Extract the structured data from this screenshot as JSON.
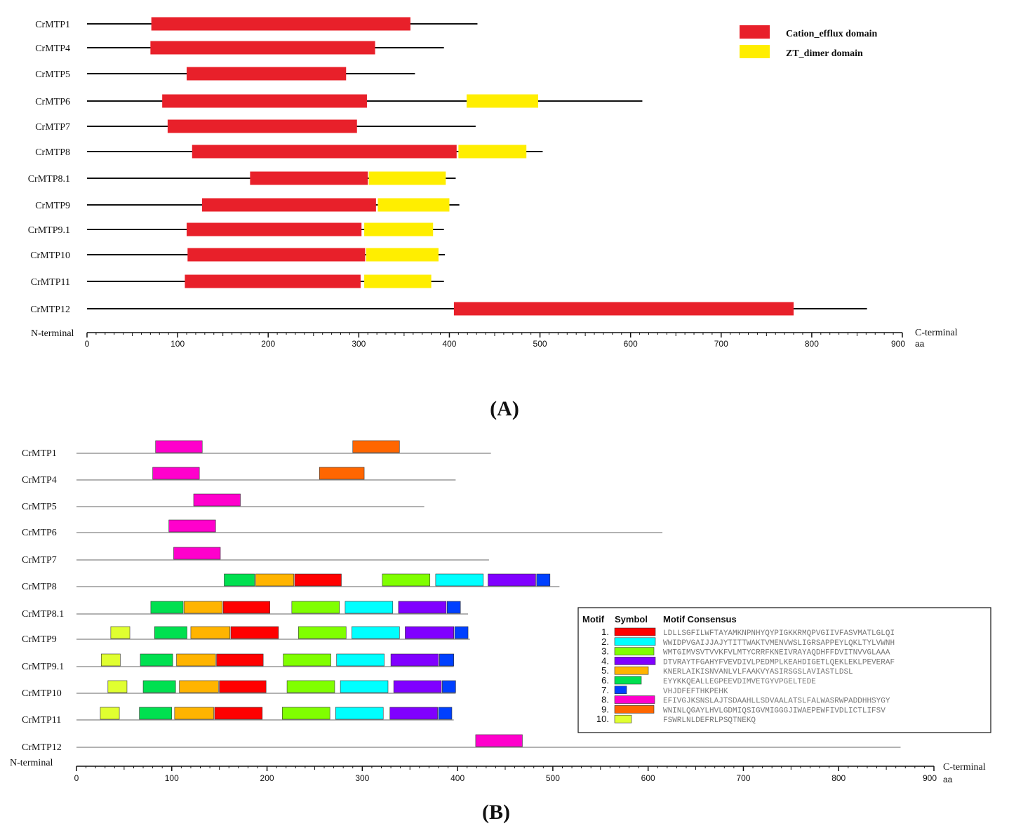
{
  "panelA": {
    "label": "A",
    "n_terminal": "N-terminal",
    "c_terminal": "C-terminal",
    "axis_unit": "aa",
    "ticks": [
      "0",
      "100",
      "200",
      "300",
      "400",
      "500",
      "600",
      "700",
      "800",
      "900"
    ],
    "legend": [
      {
        "name": "Cation_efflux domain",
        "color": "#e8202a"
      },
      {
        "name": "ZT_dimer domain",
        "color": "#ffee00"
      }
    ],
    "proteins": [
      {
        "name": "CrMTP1",
        "length": 431,
        "domains": [
          {
            "type": "Cation_efflux",
            "start": 71,
            "end": 357
          }
        ]
      },
      {
        "name": "CrMTP4",
        "length": 394,
        "domains": [
          {
            "type": "Cation_efflux",
            "start": 70,
            "end": 318
          }
        ]
      },
      {
        "name": "CrMTP5",
        "length": 362,
        "domains": [
          {
            "type": "Cation_efflux",
            "start": 110,
            "end": 286
          }
        ]
      },
      {
        "name": "CrMTP6",
        "length": 613,
        "domains": [
          {
            "type": "Cation_efflux",
            "start": 83,
            "end": 309
          },
          {
            "type": "ZT_dimer",
            "start": 419,
            "end": 498
          }
        ]
      },
      {
        "name": "CrMTP7",
        "length": 429,
        "domains": [
          {
            "type": "Cation_efflux",
            "start": 89,
            "end": 298
          }
        ]
      },
      {
        "name": "CrMTP8",
        "length": 503,
        "domains": [
          {
            "type": "Cation_efflux",
            "start": 116,
            "end": 408
          },
          {
            "type": "ZT_dimer",
            "start": 410,
            "end": 485
          }
        ]
      },
      {
        "name": "CrMTP8.1",
        "length": 407,
        "domains": [
          {
            "type": "Cation_efflux",
            "start": 180,
            "end": 310
          },
          {
            "type": "ZT_dimer",
            "start": 311,
            "end": 396
          }
        ]
      },
      {
        "name": "CrMTP9",
        "length": 411,
        "domains": [
          {
            "type": "Cation_efflux",
            "start": 127,
            "end": 319
          },
          {
            "type": "ZT_dimer",
            "start": 321,
            "end": 400
          }
        ]
      },
      {
        "name": "CrMTP9.1",
        "length": 394,
        "domains": [
          {
            "type": "Cation_efflux",
            "start": 110,
            "end": 303
          },
          {
            "type": "ZT_dimer",
            "start": 306,
            "end": 382
          }
        ]
      },
      {
        "name": "CrMTP10",
        "length": 395,
        "domains": [
          {
            "type": "Cation_efflux",
            "start": 111,
            "end": 307
          },
          {
            "type": "ZT_dimer",
            "start": 308,
            "end": 388
          }
        ]
      },
      {
        "name": "CrMTP11",
        "length": 394,
        "domains": [
          {
            "type": "Cation_efflux",
            "start": 108,
            "end": 302
          },
          {
            "type": "ZT_dimer",
            "start": 306,
            "end": 380
          }
        ]
      },
      {
        "name": "CrMTP12",
        "length": 861,
        "domains": [
          {
            "type": "Cation_efflux",
            "start": 405,
            "end": 780
          }
        ]
      }
    ]
  },
  "panelB": {
    "label": "B",
    "n_terminal": "N-terminal",
    "c_terminal": "C-terminal",
    "axis_unit": "aa",
    "ticks": [
      "0",
      "100",
      "200",
      "300",
      "400",
      "500",
      "600",
      "700",
      "800",
      "900"
    ],
    "legend_headers": {
      "motif": "Motif",
      "symbol": "Symbol",
      "consensus": "Motif Consensus"
    },
    "motifs": [
      {
        "num": "1.",
        "color": "#ff0000",
        "consensus": "LDLLSGFILWFTAYAMKNPNHYQYPIGKKRMQPVGIIVFASVMATLGLQI"
      },
      {
        "num": "2.",
        "color": "#00ffff",
        "consensus": "WWIDPVGAIJJAJYTITTWAKTVMENVWSLIGRSAPPEYLQKLTYLVWNH"
      },
      {
        "num": "3.",
        "color": "#80ff00",
        "consensus": "WMTGIMVSVTVVKFVLMTYCRRFKNEIVRAYAQDHFFDVITNVVGLAAA"
      },
      {
        "num": "4.",
        "color": "#8000ff",
        "consensus": "DTVRAYTFGAHYFVEVDIVLPEDMPLKEAHDIGETLQEKLEKLPEVERAF"
      },
      {
        "num": "5.",
        "color": "#ffb400",
        "consensus": "KNERLAIKISNVANLVLFAAKVYASIRSGSLAVIASTLDSL"
      },
      {
        "num": "6.",
        "color": "#00e050",
        "consensus": "EYYKKQEALLEGPEEVDIMVETGYVPGELTEDE"
      },
      {
        "num": "7.",
        "color": "#0040ff",
        "consensus": "VHJDFEFTHKPEHK"
      },
      {
        "num": "8.",
        "color": "#ff00cc",
        "consensus": "EFIVGJKSNSLAJTSDAAHLLSDVAALATSLFALWASRWPADDHHSYGY"
      },
      {
        "num": "9.",
        "color": "#ff6600",
        "consensus": "WNINLQGAYLHVLGDMIQSIGVMIGGGJIWAEPEWFIVDLICTLIFSV"
      },
      {
        "num": "10.",
        "color": "#e0ff30",
        "consensus": "FSWRLNLDEFRLPSQTNEKQ"
      }
    ],
    "proteins": [
      {
        "name": "CrMTP1",
        "length": 435,
        "motifs": [
          {
            "m": 8,
            "start": 83,
            "end": 132
          },
          {
            "m": 9,
            "start": 290,
            "end": 339
          }
        ]
      },
      {
        "name": "CrMTP4",
        "length": 398,
        "motifs": [
          {
            "m": 8,
            "start": 80,
            "end": 129
          },
          {
            "m": 9,
            "start": 255,
            "end": 302
          }
        ]
      },
      {
        "name": "CrMTP5",
        "length": 365,
        "motifs": [
          {
            "m": 8,
            "start": 123,
            "end": 172
          }
        ]
      },
      {
        "name": "CrMTP6",
        "length": 615,
        "motifs": [
          {
            "m": 8,
            "start": 97,
            "end": 146
          }
        ]
      },
      {
        "name": "CrMTP7",
        "length": 433,
        "motifs": [
          {
            "m": 8,
            "start": 102,
            "end": 151
          }
        ]
      },
      {
        "name": "CrMTP8",
        "length": 507,
        "motifs": [
          {
            "m": 6,
            "start": 155,
            "end": 187
          },
          {
            "m": 5,
            "start": 188,
            "end": 228
          },
          {
            "m": 1,
            "start": 229,
            "end": 278
          },
          {
            "m": 3,
            "start": 321,
            "end": 371
          },
          {
            "m": 2,
            "start": 377,
            "end": 427
          },
          {
            "m": 4,
            "start": 432,
            "end": 482
          },
          {
            "m": 7,
            "start": 483,
            "end": 497
          }
        ]
      },
      {
        "name": "CrMTP8.1",
        "length": 411,
        "motifs": [
          {
            "m": 6,
            "start": 78,
            "end": 112
          },
          {
            "m": 5,
            "start": 113,
            "end": 153
          },
          {
            "m": 1,
            "start": 154,
            "end": 203
          },
          {
            "m": 3,
            "start": 226,
            "end": 276
          },
          {
            "m": 2,
            "start": 282,
            "end": 332
          },
          {
            "m": 4,
            "start": 338,
            "end": 388
          },
          {
            "m": 7,
            "start": 389,
            "end": 403
          }
        ]
      },
      {
        "name": "CrMTP9",
        "length": 413,
        "motifs": [
          {
            "m": 10,
            "start": 36,
            "end": 56
          },
          {
            "m": 6,
            "start": 82,
            "end": 116
          },
          {
            "m": 5,
            "start": 120,
            "end": 161
          },
          {
            "m": 1,
            "start": 162,
            "end": 212
          },
          {
            "m": 3,
            "start": 233,
            "end": 283
          },
          {
            "m": 2,
            "start": 289,
            "end": 339
          },
          {
            "m": 4,
            "start": 345,
            "end": 396
          },
          {
            "m": 7,
            "start": 397,
            "end": 411
          }
        ]
      },
      {
        "name": "CrMTP9.1",
        "length": 396,
        "motifs": [
          {
            "m": 10,
            "start": 26,
            "end": 46
          },
          {
            "m": 6,
            "start": 67,
            "end": 101
          },
          {
            "m": 5,
            "start": 105,
            "end": 146
          },
          {
            "m": 1,
            "start": 147,
            "end": 196
          },
          {
            "m": 3,
            "start": 217,
            "end": 267
          },
          {
            "m": 2,
            "start": 273,
            "end": 323
          },
          {
            "m": 4,
            "start": 330,
            "end": 380
          },
          {
            "m": 7,
            "start": 381,
            "end": 396
          }
        ]
      },
      {
        "name": "CrMTP10",
        "length": 398,
        "motifs": [
          {
            "m": 10,
            "start": 33,
            "end": 53
          },
          {
            "m": 6,
            "start": 70,
            "end": 104
          },
          {
            "m": 5,
            "start": 108,
            "end": 149
          },
          {
            "m": 1,
            "start": 150,
            "end": 199
          },
          {
            "m": 3,
            "start": 221,
            "end": 271
          },
          {
            "m": 2,
            "start": 277,
            "end": 327
          },
          {
            "m": 4,
            "start": 333,
            "end": 383
          },
          {
            "m": 7,
            "start": 384,
            "end": 398
          }
        ]
      },
      {
        "name": "CrMTP11",
        "length": 396,
        "motifs": [
          {
            "m": 10,
            "start": 25,
            "end": 45
          },
          {
            "m": 6,
            "start": 66,
            "end": 100
          },
          {
            "m": 5,
            "start": 103,
            "end": 144
          },
          {
            "m": 1,
            "start": 145,
            "end": 195
          },
          {
            "m": 3,
            "start": 216,
            "end": 266
          },
          {
            "m": 2,
            "start": 272,
            "end": 322
          },
          {
            "m": 4,
            "start": 329,
            "end": 379
          },
          {
            "m": 7,
            "start": 380,
            "end": 394
          }
        ]
      },
      {
        "name": "CrMTP12",
        "length": 865,
        "motifs": [
          {
            "m": 8,
            "start": 419,
            "end": 468
          }
        ]
      }
    ]
  }
}
